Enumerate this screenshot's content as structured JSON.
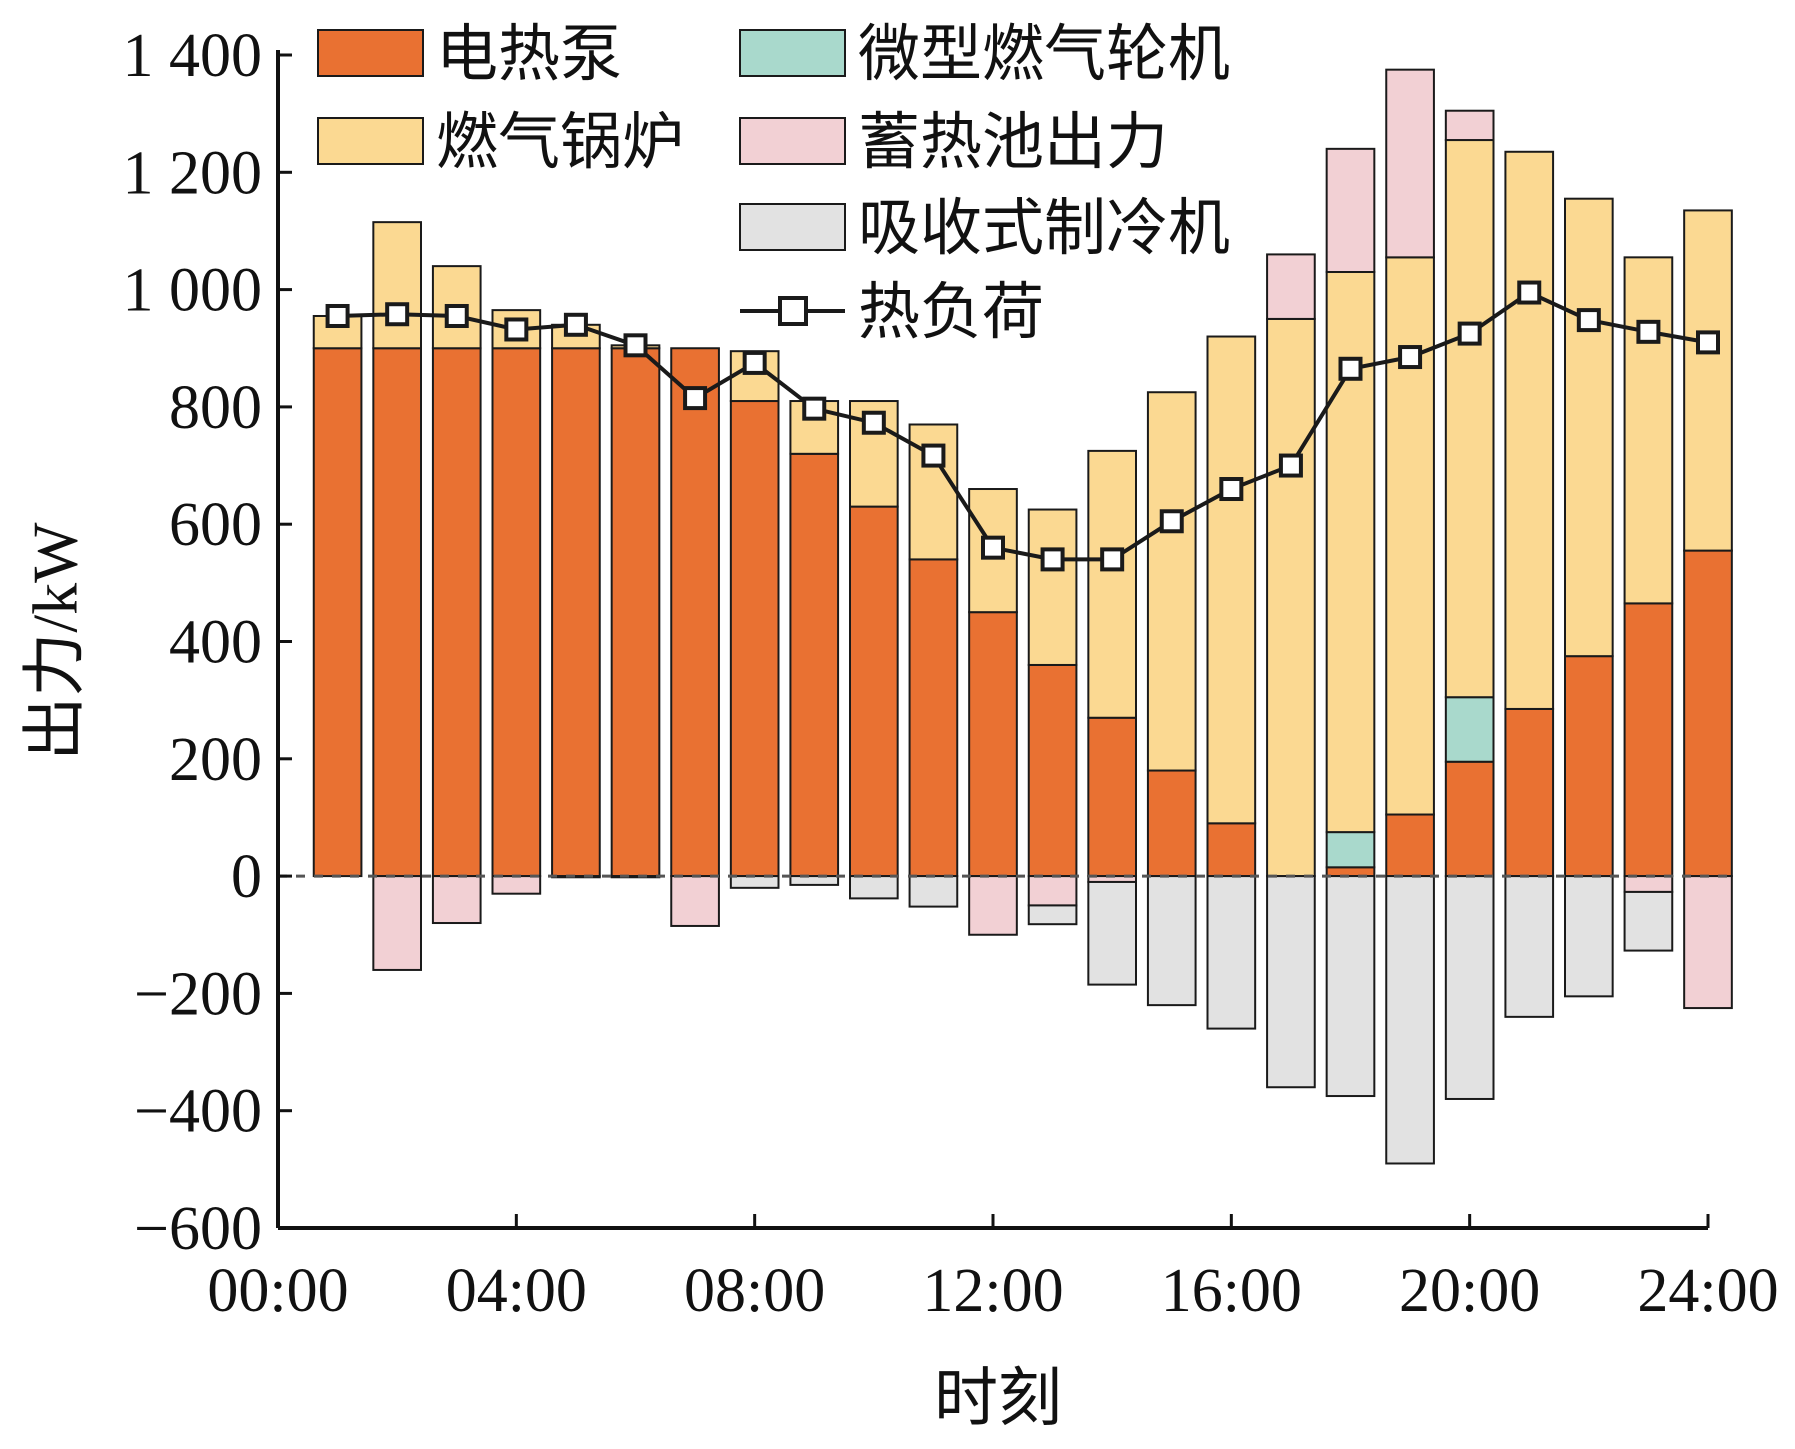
{
  "chart_data": {
    "type": "bar",
    "subtype": "stacked-bar-with-line",
    "xlabel": "时刻",
    "ylabel": "出力/kW",
    "ylim": [
      -600,
      1400
    ],
    "yticks": [
      {
        "value": 1400,
        "label": "1 400"
      },
      {
        "value": 1200,
        "label": "1 200"
      },
      {
        "value": 1000,
        "label": "1 000"
      },
      {
        "value": 800,
        "label": "800"
      },
      {
        "value": 600,
        "label": "600"
      },
      {
        "value": 400,
        "label": "400"
      },
      {
        "value": 200,
        "label": "200"
      },
      {
        "value": 0,
        "label": "0"
      },
      {
        "value": -200,
        "label": "−200"
      },
      {
        "value": -400,
        "label": "−400"
      },
      {
        "value": -600,
        "label": "−600"
      }
    ],
    "xticks": [
      {
        "hour": 0,
        "label": "00:00"
      },
      {
        "hour": 4,
        "label": "04:00"
      },
      {
        "hour": 8,
        "label": "08:00"
      },
      {
        "hour": 12,
        "label": "12:00"
      },
      {
        "hour": 16,
        "label": "16:00"
      },
      {
        "hour": 20,
        "label": "20:00"
      },
      {
        "hour": 24,
        "label": "24:00"
      }
    ],
    "xlim": [
      0,
      24
    ],
    "hours": [
      1,
      2,
      3,
      4,
      5,
      6,
      7,
      8,
      9,
      10,
      11,
      12,
      13,
      14,
      15,
      16,
      17,
      18,
      19,
      20,
      21,
      22,
      23,
      24
    ],
    "grid": false,
    "legend_position": "top-left",
    "series": [
      {
        "name": "电热泵",
        "key": "heat_pump",
        "color": "#E97132",
        "stack": "positive",
        "values": [
          900,
          900,
          900,
          900,
          900,
          900,
          900,
          810,
          720,
          630,
          540,
          450,
          360,
          270,
          180,
          90,
          0,
          15,
          105,
          195,
          285,
          375,
          465,
          555
        ]
      },
      {
        "name": "微型燃气轮机",
        "key": "micro_turbine",
        "color": "#A9D9CC",
        "stack": "positive",
        "values": [
          0,
          0,
          0,
          0,
          0,
          0,
          0,
          0,
          0,
          0,
          0,
          0,
          0,
          0,
          0,
          0,
          0,
          60,
          0,
          110,
          0,
          0,
          0,
          0
        ]
      },
      {
        "name": "燃气锅炉",
        "key": "gas_boiler",
        "color": "#FBD992",
        "stack": "positive",
        "values": [
          55,
          215,
          140,
          65,
          40,
          5,
          0,
          85,
          90,
          180,
          230,
          210,
          265,
          455,
          645,
          830,
          950,
          955,
          950,
          950,
          950,
          780,
          590,
          580
        ]
      },
      {
        "name": "蓄热池出力",
        "key": "storage_discharge",
        "color": "#F2D0D4",
        "stack": "positive",
        "values": [
          0,
          0,
          0,
          0,
          0,
          0,
          0,
          0,
          0,
          0,
          0,
          0,
          0,
          0,
          0,
          0,
          110,
          210,
          320,
          50,
          0,
          0,
          0,
          0
        ]
      },
      {
        "name": "蓄热池出力",
        "key": "storage_charge",
        "color": "#F2D0D4",
        "stack": "negative",
        "legend": false,
        "values": [
          0,
          -160,
          -80,
          -30,
          -2,
          -2,
          -85,
          0,
          0,
          0,
          0,
          -100,
          -50,
          -10,
          0,
          0,
          0,
          0,
          0,
          0,
          0,
          0,
          -27,
          -225
        ]
      },
      {
        "name": "吸收式制冷机",
        "key": "absorption_chiller",
        "color": "#E2E2E2",
        "stack": "negative",
        "values": [
          0,
          0,
          0,
          0,
          0,
          0,
          0,
          -20,
          -15,
          -38,
          -52,
          0,
          -32,
          -175,
          -220,
          -260,
          -360,
          -375,
          -490,
          -380,
          -240,
          -205,
          -100,
          0
        ]
      },
      {
        "name": "热负荷",
        "key": "heat_load",
        "color": "#1A1A1A",
        "type": "line",
        "marker": "square",
        "values": [
          955,
          958,
          955,
          932,
          940,
          905,
          815,
          875,
          797,
          773,
          717,
          560,
          540,
          540,
          605,
          660,
          700,
          865,
          885,
          925,
          995,
          948,
          928,
          910
        ]
      }
    ],
    "legend_order": [
      "heat_pump",
      "micro_turbine",
      "gas_boiler",
      "storage_discharge",
      "absorption_chiller",
      "heat_load"
    ]
  }
}
